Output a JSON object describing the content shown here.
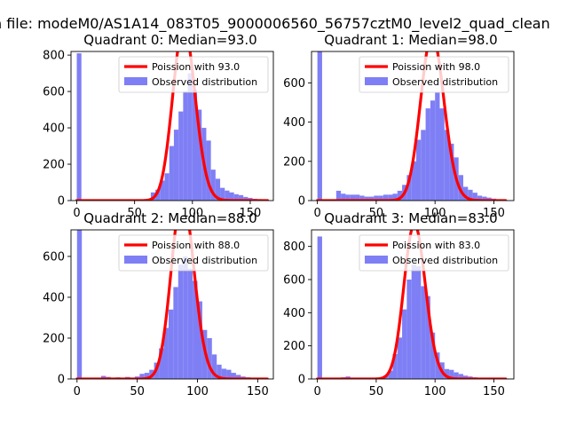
{
  "figure": {
    "suptitle": "n file: modeM0/AS1A14_083T05_9000006560_56757cztM0_level2_quad_clean"
  },
  "colors": {
    "hist": "#7f7ff5",
    "poisson": "#ff0000"
  },
  "chart_data": [
    {
      "type": "bar",
      "title": "Quadrant 0: Median=93.0",
      "median": 93,
      "xlim": [
        -5,
        170
      ],
      "ylim": [
        0,
        820
      ],
      "xticks": [
        0,
        50,
        100,
        150
      ],
      "yticks": [
        0,
        200,
        400,
        600,
        800
      ],
      "bin_width": 4,
      "bins": [
        [
          0,
          810
        ],
        [
          24,
          3
        ],
        [
          44,
          3
        ],
        [
          60,
          10
        ],
        [
          64,
          45
        ],
        [
          68,
          60
        ],
        [
          72,
          110
        ],
        [
          76,
          150
        ],
        [
          80,
          300
        ],
        [
          84,
          390
        ],
        [
          88,
          490
        ],
        [
          92,
          600
        ],
        [
          96,
          700
        ],
        [
          100,
          610
        ],
        [
          104,
          500
        ],
        [
          108,
          400
        ],
        [
          112,
          330
        ],
        [
          116,
          170
        ],
        [
          120,
          120
        ],
        [
          124,
          70
        ],
        [
          128,
          55
        ],
        [
          132,
          45
        ],
        [
          136,
          35
        ],
        [
          140,
          30
        ],
        [
          144,
          20
        ],
        [
          148,
          15
        ],
        [
          152,
          10
        ],
        [
          156,
          8
        ],
        [
          160,
          5
        ]
      ],
      "legend": [
        "Poission with 93.0",
        "Observed distribution"
      ],
      "x_range": [
        0,
        165
      ]
    },
    {
      "type": "bar",
      "title": "Quadrant 1: Median=98.0",
      "median": 98,
      "xlim": [
        -5,
        167
      ],
      "ylim": [
        0,
        760
      ],
      "xticks": [
        0,
        50,
        100,
        150
      ],
      "yticks": [
        0,
        200,
        400,
        600
      ],
      "bin_width": 4,
      "bins": [
        [
          0,
          760
        ],
        [
          16,
          50
        ],
        [
          20,
          35
        ],
        [
          24,
          30
        ],
        [
          28,
          30
        ],
        [
          32,
          30
        ],
        [
          36,
          25
        ],
        [
          40,
          20
        ],
        [
          44,
          20
        ],
        [
          48,
          25
        ],
        [
          52,
          25
        ],
        [
          56,
          30
        ],
        [
          60,
          30
        ],
        [
          64,
          35
        ],
        [
          68,
          50
        ],
        [
          72,
          80
        ],
        [
          76,
          130
        ],
        [
          80,
          200
        ],
        [
          84,
          310
        ],
        [
          88,
          360
        ],
        [
          92,
          470
        ],
        [
          96,
          510
        ],
        [
          100,
          550
        ],
        [
          104,
          470
        ],
        [
          108,
          360
        ],
        [
          112,
          290
        ],
        [
          116,
          220
        ],
        [
          120,
          130
        ],
        [
          124,
          70
        ],
        [
          128,
          55
        ],
        [
          132,
          40
        ],
        [
          136,
          25
        ],
        [
          140,
          20
        ],
        [
          144,
          15
        ],
        [
          148,
          10
        ]
      ],
      "legend": [
        "Poission with 98.0",
        "Observed distribution"
      ],
      "x_range": [
        0,
        160
      ]
    },
    {
      "type": "bar",
      "title": "Quadrant 2: Median=88.0",
      "median": 88,
      "xlim": [
        -5,
        163
      ],
      "ylim": [
        0,
        730
      ],
      "xticks": [
        0,
        50,
        100,
        150
      ],
      "yticks": [
        0,
        200,
        400,
        600
      ],
      "bin_width": 4,
      "bins": [
        [
          0,
          730
        ],
        [
          20,
          15
        ],
        [
          24,
          10
        ],
        [
          32,
          8
        ],
        [
          40,
          10
        ],
        [
          48,
          12
        ],
        [
          52,
          25
        ],
        [
          56,
          30
        ],
        [
          60,
          45
        ],
        [
          64,
          80
        ],
        [
          68,
          150
        ],
        [
          72,
          250
        ],
        [
          76,
          340
        ],
        [
          80,
          450
        ],
        [
          84,
          560
        ],
        [
          88,
          600
        ],
        [
          92,
          540
        ],
        [
          96,
          480
        ],
        [
          100,
          380
        ],
        [
          104,
          240
        ],
        [
          108,
          200
        ],
        [
          112,
          120
        ],
        [
          116,
          70
        ],
        [
          120,
          50
        ],
        [
          124,
          45
        ],
        [
          128,
          30
        ],
        [
          132,
          20
        ],
        [
          136,
          12
        ],
        [
          140,
          8
        ],
        [
          144,
          5
        ]
      ],
      "legend": [
        "Poission with 88.0",
        "Observed distribution"
      ],
      "x_range": [
        0,
        158
      ]
    },
    {
      "type": "bar",
      "title": "Quadrant 3: Median=83.0",
      "median": 83,
      "xlim": [
        -5,
        167
      ],
      "ylim": [
        0,
        900
      ],
      "xticks": [
        0,
        50,
        100,
        150
      ],
      "yticks": [
        0,
        200,
        400,
        600,
        800
      ],
      "bin_width": 4,
      "bins": [
        [
          0,
          860
        ],
        [
          20,
          10
        ],
        [
          24,
          15
        ],
        [
          28,
          8
        ],
        [
          36,
          5
        ],
        [
          44,
          8
        ],
        [
          52,
          10
        ],
        [
          56,
          20
        ],
        [
          60,
          50
        ],
        [
          64,
          150
        ],
        [
          68,
          250
        ],
        [
          72,
          420
        ],
        [
          76,
          600
        ],
        [
          80,
          690
        ],
        [
          84,
          680
        ],
        [
          88,
          560
        ],
        [
          92,
          500
        ],
        [
          96,
          280
        ],
        [
          100,
          160
        ],
        [
          104,
          100
        ],
        [
          108,
          60
        ],
        [
          112,
          55
        ],
        [
          116,
          40
        ],
        [
          120,
          30
        ],
        [
          124,
          20
        ],
        [
          128,
          15
        ],
        [
          132,
          10
        ],
        [
          136,
          8
        ],
        [
          140,
          5
        ]
      ],
      "legend": [
        "Poission with 83.0",
        "Observed distribution"
      ],
      "x_range": [
        0,
        160
      ]
    }
  ]
}
